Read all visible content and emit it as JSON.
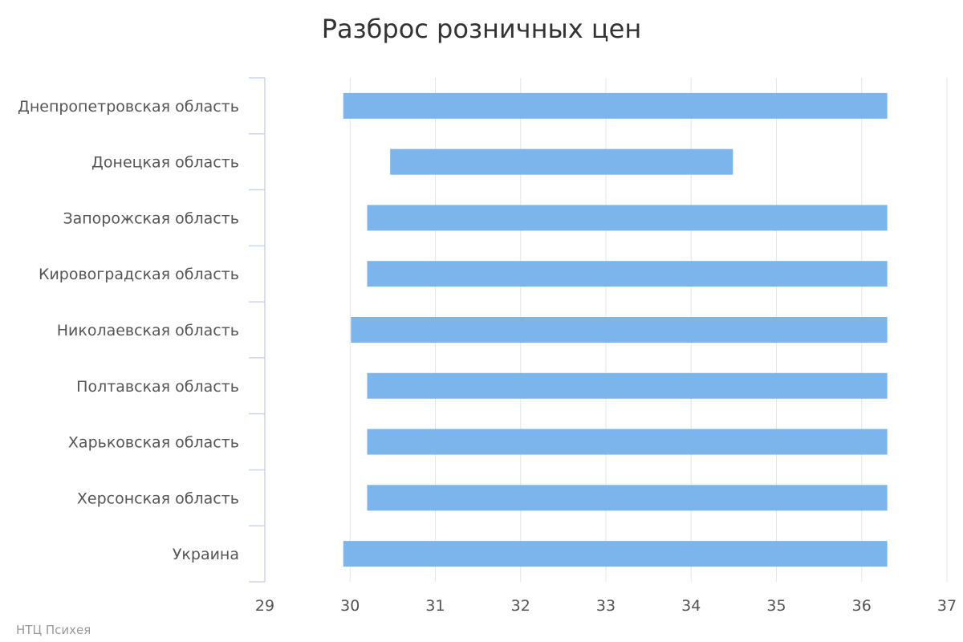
{
  "chart_data": {
    "type": "bar",
    "orientation": "horizontal",
    "subtype": "range",
    "title": "Разброс розничных цен",
    "xlabel": "",
    "ylabel": "",
    "categories": [
      "Днепропетровская область",
      "Донецкая область",
      "Запорожская область",
      "Кировоградская область",
      "Николаевская область",
      "Полтавская область",
      "Харьковская область",
      "Херсонская область",
      "Украина"
    ],
    "series": [
      {
        "ranges": [
          [
            29.92,
            36.3
          ],
          [
            30.47,
            34.49
          ],
          [
            30.2,
            36.3
          ],
          [
            30.2,
            36.3
          ],
          [
            30.01,
            36.3
          ],
          [
            30.2,
            36.3
          ],
          [
            30.2,
            36.3
          ],
          [
            30.2,
            36.3
          ],
          [
            29.92,
            36.3
          ]
        ]
      }
    ],
    "xlim": [
      29,
      37
    ],
    "xticks": [
      "29",
      "30",
      "31",
      "32",
      "33",
      "34",
      "35",
      "36",
      "37"
    ],
    "grid": true,
    "legend": "none",
    "bar_color": "#7cb5ec"
  },
  "credit": "НТЦ Психея"
}
